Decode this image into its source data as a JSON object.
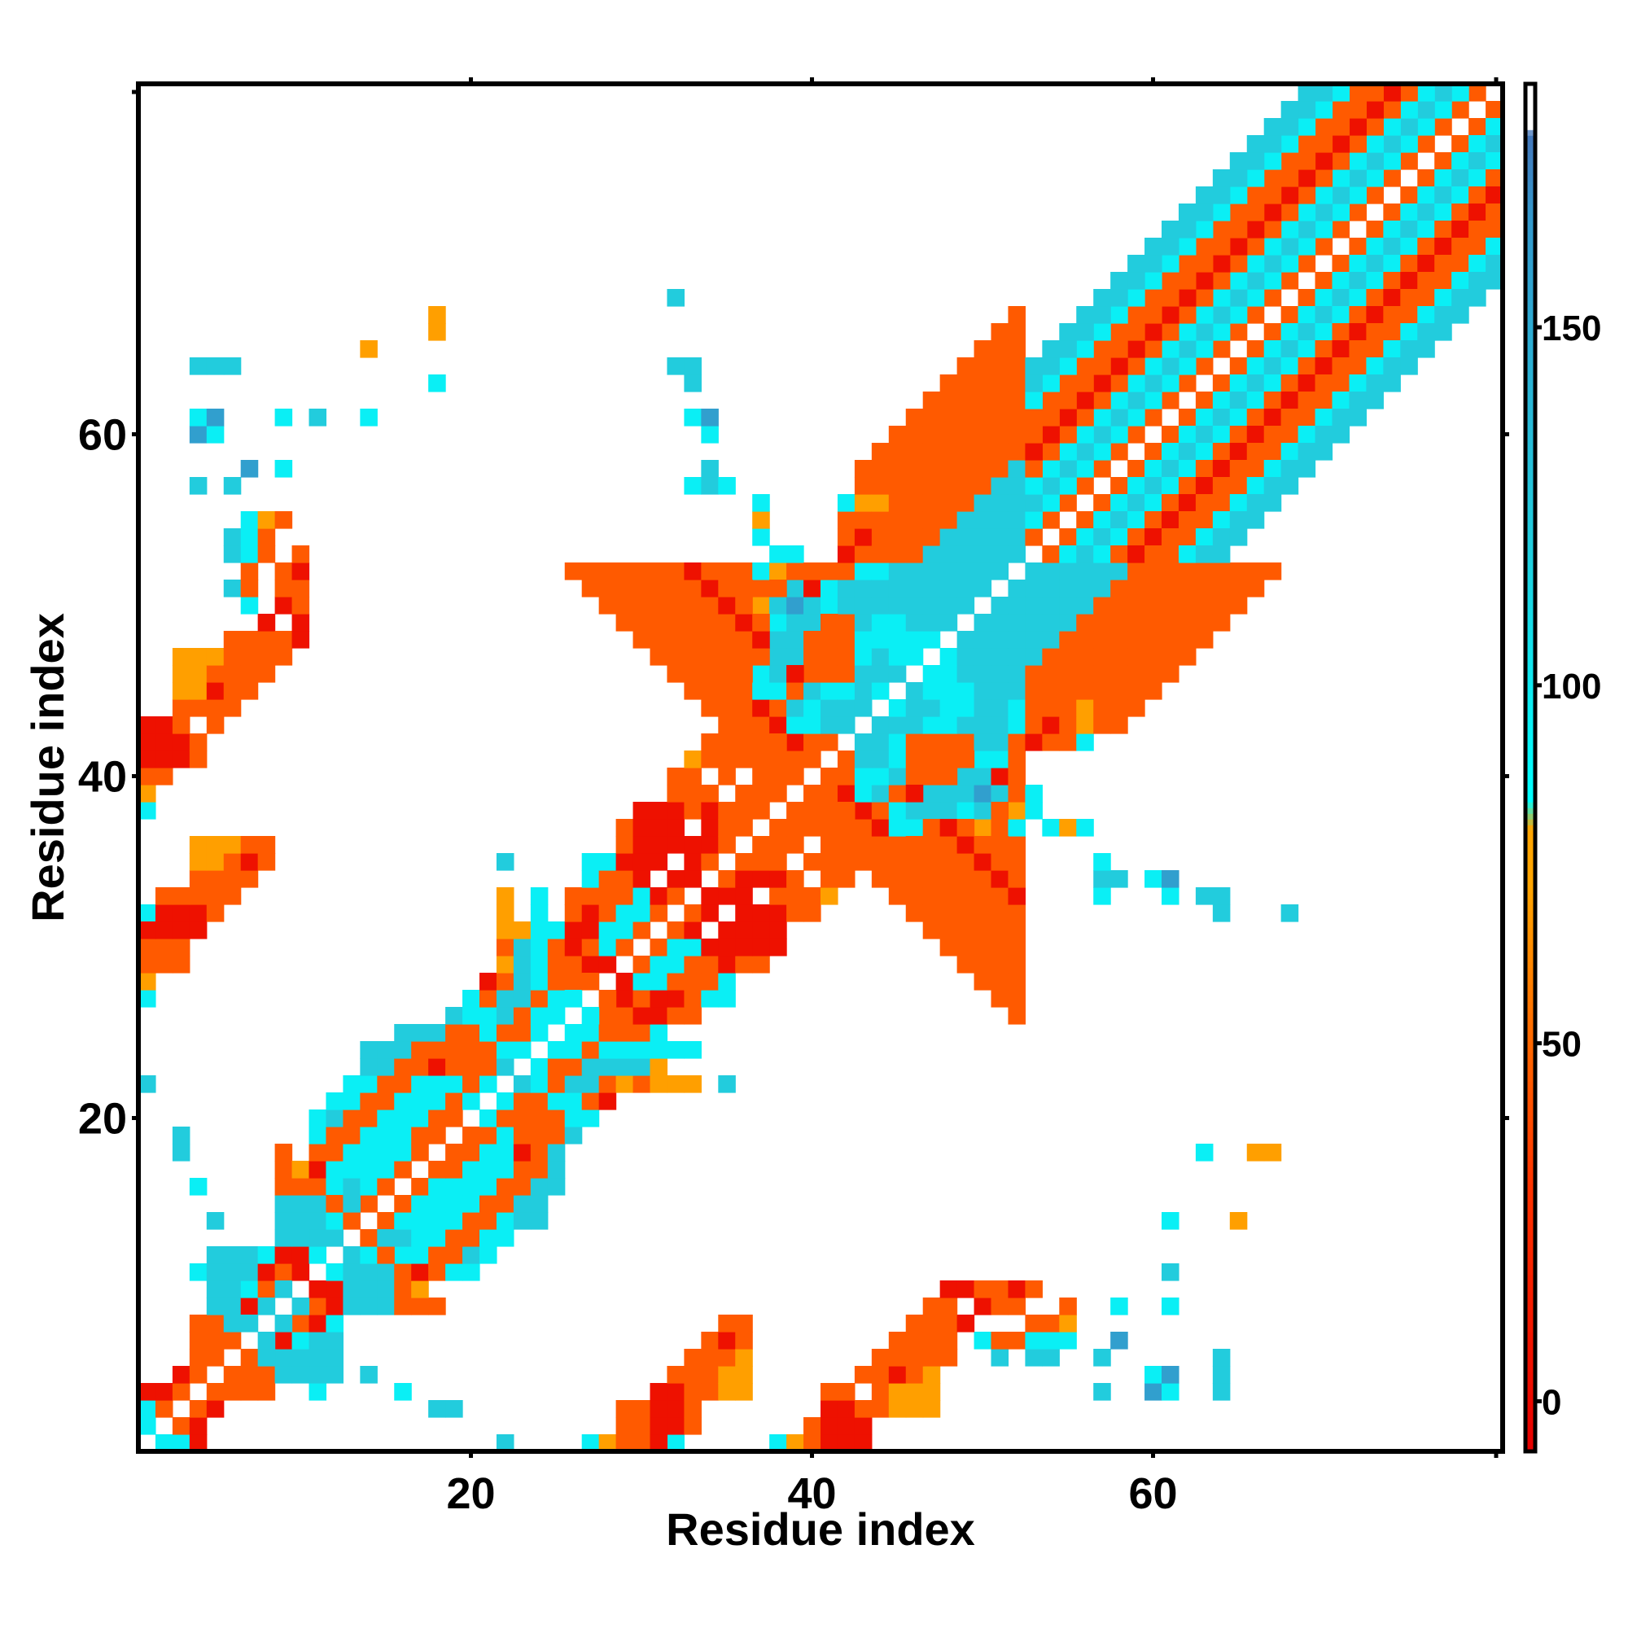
{
  "chart_data": {
    "type": "heatmap",
    "title": "",
    "xlabel": "Residue index",
    "ylabel": "Residue index",
    "xlim": [
      0.5,
      80.5
    ],
    "ylim": [
      0.5,
      80.5
    ],
    "xticks": [
      20,
      40,
      60
    ],
    "yticks": [
      20,
      40,
      60
    ],
    "grid": false,
    "colorbar": {
      "ticks": [
        0,
        50,
        100,
        150
      ],
      "range": [
        -7,
        184
      ],
      "stops": [
        {
          "v": -7,
          "color": "#e60000"
        },
        {
          "v": 30,
          "color": "#ff3300"
        },
        {
          "v": 56,
          "color": "#ff7700"
        },
        {
          "v": 72,
          "color": "#ffa500"
        },
        {
          "v": 80,
          "color": "#ffa500"
        },
        {
          "v": 84,
          "color": "#00ffff"
        },
        {
          "v": 120,
          "color": "#22ccdd"
        },
        {
          "v": 165,
          "color": "#3399cc"
        },
        {
          "v": 177,
          "color": "#4477bb"
        },
        {
          "v": 178,
          "color": "#ffffff"
        },
        {
          "v": 184,
          "color": "#ffffff"
        }
      ]
    },
    "value_by_letter": {
      "R": 5,
      "o": 45,
      "O": 70,
      "c": 95,
      "C": 120,
      "B": 160
    },
    "cells": [
      "3,1,c",
      "4,1,R",
      "32,1,c",
      "38,1,c",
      "39,1,O",
      "40,1,o",
      "41,1,R",
      "42,1,R",
      "43,1,R",
      "1,2,c",
      "3,2,o",
      "4,2,R",
      "40,2,o",
      "41,2,R",
      "42,2,R",
      "43,2,R",
      "1,3,R",
      "2,3,o",
      "4,3,o",
      "5,3,R",
      "19,3,C",
      "41,3,R",
      "42,3,R",
      "43,3,o",
      "44,3,o",
      "45,3,O",
      "46,3,O",
      "47,3,O",
      "2,4,R",
      "3,4,o",
      "5,4,o",
      "6,4,o",
      "7,4,o",
      "8,4,o",
      "11,4,c",
      "16,4,c",
      "41,4,o",
      "42,4,o",
      "44,4,o",
      "45,4,O",
      "46,4,O",
      "47,4,O",
      "57,4,C",
      "60,4,B",
      "61,4,c",
      "64,4,C",
      "3,5,R",
      "4,5,o",
      "5,5,o",
      "6,5,o",
      "7,5,o",
      "8,5,o",
      "9,5,C",
      "10,5,C",
      "11,5,C",
      "12,5,C",
      "43,5,o",
      "44,5,o",
      "45,5,R",
      "46,5,o",
      "47,5,O",
      "60,5,c",
      "61,5,B",
      "64,5,C",
      "4,6,o",
      "5,6,o",
      "7,6,o",
      "9,6,C",
      "10,6,C",
      "11,6,C",
      "12,6,C",
      "44,6,o",
      "45,6,o",
      "46,6,o",
      "47,6,o",
      "48,6,o",
      "51,6,C",
      "53,6,C",
      "54,6,C",
      "57,6,C",
      "64,6,C",
      "5,7,R",
      "6,7,o",
      "7,7,O",
      "9,7,R",
      "10,7,c",
      "11,7,C",
      "12,7,C",
      "45,7,o",
      "46,7,o",
      "47,7,o",
      "48,7,o",
      "50,7,c",
      "51,7,o",
      "52,7,o",
      "53,7,c",
      "54,7,c",
      "55,7,c",
      "58,7,B",
      "6,8,C",
      "7,8,C",
      "8,8,o",
      "10,8,o",
      "11,8,R",
      "12,8,c",
      "46,8,o",
      "47,8,o",
      "48,8,o",
      "49,8,R",
      "53,8,o",
      "54,8,o",
      "55,8,O",
      "6,9,C",
      "7,9,C",
      "8,9,C",
      "9,9,O",
      "11,9,o",
      "12,9,R",
      "14,9,C",
      "15,9,C",
      "16,9,o",
      "17,9,o",
      "18,9,o",
      "47,9,o",
      "48,9,o",
      "50,9,R",
      "51,9,o",
      "52,9,o",
      "55,9,o",
      "58,9,c",
      "61,9,c",
      "7,10,C",
      "8,10,C",
      "9,10,C",
      "10,10,C",
      "12,10,R",
      "14,10,C",
      "15,10,C",
      "16,10,o",
      "17,10,O",
      "48,10,R",
      "49,10,R",
      "50,10,o",
      "51,10,o",
      "52,10,R",
      "53,10,o",
      "10,11,R",
      "11,11,o",
      "12,11,c",
      "13,11,C",
      "14,11,C",
      "15,11,C",
      "16,11,o",
      "17,11,R",
      "18,11,o",
      "19,11,c",
      "20,11,c",
      "61,11,C",
      "9,12,o",
      "10,12,o",
      "11,12,C",
      "12,12,C",
      "13,12,C",
      "14,12,c",
      "16,12,c",
      "17,12,c",
      "18,12,o",
      "19,12,o",
      "20,12,C",
      "21,12,c",
      "9,13,C",
      "10,13,C",
      "11,13,C",
      "12,13,C",
      "13,13,c",
      "14,13,o",
      "16,13,C",
      "17,13,c",
      "18,13,c",
      "19,13,o",
      "20,13,o",
      "21,13,c",
      "22,13,c",
      "5,14,C",
      "11,14,R",
      "12,14,o",
      "13,14,C",
      "14,14,C",
      "15,14,o",
      "16,14,c",
      "17,14,c",
      "18,14,c",
      "19,14,c",
      "20,14,o",
      "21,14,o",
      "22,14,c",
      "23,14,C",
      "24,14,C",
      "61,14,c",
      "65,14,O",
      "11,15,R",
      "12,15,o",
      "13,15,C",
      "14,15,C",
      "15,15,C",
      "16,15,o",
      "17,15,c",
      "18,15,c",
      "19,15,c",
      "20,15,c",
      "21,15,o",
      "22,15,o",
      "23,15,C",
      "24,15,C",
      "12,16,R",
      "13,16,o",
      "14,16,C",
      "15,16,C",
      "16,16,C",
      "17,16,o",
      "18,16,c",
      "19,16,c",
      "20,16,c",
      "21,16,c",
      "22,16,o",
      "23,16,o",
      "24,16,C",
      "25,16,C",
      "13,17,C",
      "14,17,o",
      "15,17,o",
      "16,17,C",
      "17,17,c",
      "18,17,o",
      "19,17,o",
      "20,17,c",
      "21,17,c",
      "22,17,c",
      "23,17,o",
      "24,17,o",
      "25,17,C",
      "3,18,C",
      "13,18,C",
      "14,18,C",
      "15,18,o",
      "16,18,R",
      "17,18,c",
      "18,18,c",
      "19,18,o",
      "20,18,o",
      "21,18,c",
      "22,18,c",
      "23,18,R",
      "24,18,o",
      "25,18,C",
      "63,18,c",
      "66,18,O",
      "67,18,O",
      "14,19,C",
      "15,19,C",
      "16,19,o",
      "17,19,o",
      "18,19,c",
      "19,19,c",
      "20,19,o",
      "21,19,o",
      "22,19,c",
      "23,19,o",
      "24,19,o",
      "25,19,o",
      "26,19,C",
      "15,20,c",
      "16,20,C",
      "17,20,o",
      "18,20,o",
      "19,20,o",
      "20,20,C",
      "21,20,c",
      "22,20,o",
      "23,20,o",
      "24,20,o",
      "25,20,o",
      "26,20,c",
      "27,20,c",
      "16,21,C",
      "17,21,c",
      "18,21,o",
      "19,21,o",
      "20,21,o",
      "21,21,c",
      "22,21,c",
      "23,21,o",
      "24,21,o",
      "25,21,c",
      "26,21,c",
      "27,21,o",
      "28,21,R",
      "1,22,C",
      "16,22,c",
      "17,22,C",
      "18,22,C",
      "19,22,o",
      "20,22,o",
      "21,22,o",
      "22,22,c",
      "23,22,C",
      "24,22,c",
      "25,22,o",
      "26,22,C",
      "27,22,C",
      "28,22,o",
      "29,22,O",
      "30,22,o",
      "31,22,O",
      "32,22,O",
      "33,22,O",
      "35,22,C",
      "17,23,C",
      "18,23,c",
      "19,23,C",
      "20,23,o",
      "21,23,o",
      "22,23,o",
      "23,23,C",
      "24,23,c",
      "25,23,o",
      "26,23,o",
      "27,23,C",
      "28,23,C",
      "29,23,C",
      "30,23,C",
      "31,23,O",
      "18,24,c",
      "19,24,c",
      "20,24,c",
      "21,24,o",
      "22,24,o",
      "23,24,R",
      "24,24,o",
      "25,24,c",
      "26,24,c",
      "27,24,o",
      "28,24,c",
      "29,24,c",
      "30,24,c",
      "31,24,c",
      "32,24,c",
      "33,24,c",
      "19,25,C",
      "20,25,c",
      "21,25,o",
      "22,25,o",
      "23,25,o",
      "24,25,o",
      "25,25,C",
      "26,25,c",
      "27,25,c",
      "28,25,o",
      "29,25,o",
      "30,25,o",
      "31,25,c",
      "20,26,c",
      "21,26,c",
      "22,26,c",
      "23,26,o",
      "24,26,o",
      "25,26,C",
      "26,26,C",
      "28,26,o",
      "29,26,o",
      "30,26,R",
      "31,26,R",
      "32,26,o",
      "33,26,o",
      "1,27,c",
      "21,27,o",
      "22,27,o",
      "23,27,o",
      "24,27,O",
      "25,27,C",
      "26,27,c",
      "27,27,o",
      "29,27,R",
      "30,27,o",
      "31,27,R",
      "32,27,R",
      "33,27,o",
      "34,27,c",
      "35,27,c",
      "1,28,O",
      "25,28,o",
      "26,28,o",
      "27,28,o",
      "29,28,R",
      "30,28,c",
      "31,28,c",
      "32,28,o",
      "33,28,o",
      "34,28,o",
      "35,28,c",
      "1,29,o",
      "2,29,o",
      "3,29,o",
      "29,29,o",
      "30,29,o",
      "31,29,c",
      "32,29,c",
      "33,29,o",
      "34,29,o",
      "35,29,R",
      "36,29,o",
      "37,29,o",
      "1,30,o",
      "2,30,o",
      "3,30,o",
      "22,30,C",
      "30,30,o",
      "31,30,o",
      "32,30,c",
      "33,30,c",
      "34,30,R",
      "35,30,R",
      "36,30,R",
      "37,30,R",
      "38,30,R",
      "1,31,R",
      "2,31,R",
      "3,31,R",
      "4,31,R",
      "31,31,o",
      "32,31,o",
      "33,31,R",
      "35,31,R",
      "36,31,R",
      "37,31,R",
      "38,31,R",
      "1,32,R",
      "2,32,R",
      "3,32,R",
      "4,32,R",
      "5,32,o",
      "32,32,o",
      "33,32,o",
      "34,32,R",
      "36,32,R",
      "37,32,R",
      "38,32,R",
      "39,32,o",
      "40,32,o",
      "64,32,C",
      "68,32,C",
      "2,33,o",
      "3,33,o",
      "4,33,o",
      "5,33,o",
      "6,33,o",
      "33,33,o",
      "34,33,R",
      "35,33,R",
      "36,33,R",
      "38,33,o",
      "39,33,o",
      "40,33,o",
      "41,33,O",
      "57,33,c",
      "61,33,c",
      "63,33,C",
      "64,33,C",
      "4,34,o",
      "5,34,o",
      "6,34,o",
      "7,34,o",
      "34,34,o",
      "35,34,o",
      "36,34,R",
      "37,34,R",
      "38,34,R",
      "39,34,o",
      "41,34,o",
      "42,34,o",
      "57,34,C",
      "58,34,C",
      "60,34,c",
      "61,34,B",
      "4,35,O",
      "5,35,O",
      "6,35,o",
      "7,35,R",
      "8,35,o",
      "35,35,o",
      "36,35,o",
      "37,35,o",
      "38,35,o",
      "40,35,o",
      "41,35,o",
      "42,35,o",
      "43,35,o",
      "57,35,c",
      "4,36,O",
      "5,36,O",
      "6,36,O",
      "7,36,o",
      "8,36,o",
      "36,36,o",
      "37,36,o",
      "38,36,o",
      "39,36,o",
      "41,36,o",
      "42,36,o",
      "43,36,o",
      "44,36,o",
      "45,36,o",
      "52,36,o",
      "37,37,o",
      "38,37,o",
      "39,37,o",
      "40,37,o",
      "42,37,o",
      "43,37,o",
      "44,37,R",
      "45,37,c",
      "46,37,c",
      "50,37,O",
      "51,37,o",
      "52,37,c",
      "54,37,c",
      "55,37,O",
      "56,37,c",
      "38,38,o",
      "39,38,o",
      "40,38,o",
      "41,38,o",
      "43,38,R",
      "44,38,o",
      "45,38,c",
      "46,38,C",
      "47,38,C",
      "48,38,C",
      "49,38,c",
      "50,38,C",
      "52,38,O",
      "53,38,c",
      "38,39,o",
      "39,39,o",
      "40,39,o",
      "41,39,o",
      "42,39,R",
      "43,39,c",
      "44,39,C",
      "45,39,o",
      "47,39,C",
      "48,39,C",
      "49,39,C",
      "50,39,B",
      "51,39,C",
      "52,39,o",
      "53,39,c",
      "37,40,o",
      "38,40,o",
      "39,40,o",
      "40,40,o",
      "41,40,o",
      "42,40,o",
      "43,40,c",
      "44,40,c",
      "45,40,C",
      "46,40,o",
      "47,40,o",
      "49,40,C",
      "50,40,C",
      "51,40,R",
      "37,41,o",
      "38,41,o",
      "39,41,o",
      "40,41,R",
      "41,41,o",
      "42,41,o",
      "43,41,C",
      "44,41,C",
      "45,41,c",
      "46,41,o",
      "47,41,o",
      "48,41,o",
      "50,41,c",
      "51,41,c",
      "52,41,o",
      "36,42,o",
      "37,42,o",
      "38,42,o",
      "39,42,o",
      "40,42,o",
      "41,42,R",
      "42,42,o",
      "43,42,C",
      "44,42,C",
      "45,42,c",
      "46,42,o",
      "47,42,o",
      "48,42,o",
      "49,42,o",
      "50,42,C",
      "51,42,C",
      "52,42,o",
      "53,42,R",
      "54,42,o",
      "55,42,o",
      "56,42,c",
      "35,43,o",
      "36,43,o",
      "37,43,o",
      "38,43,o",
      "39,43,o",
      "40,43,o",
      "41,43,R",
      "42,43,o",
      "43,43,C",
      "44,43,C",
      "45,43,C",
      "46,43,C",
      "47,43,c",
      "48,43,c",
      "49,43,C",
      "50,43,C",
      "51,43,C",
      "52,43,c",
      "53,43,o",
      "54,43,R",
      "55,43,o",
      "56,43,O",
      "57,43,o",
      "58,43,o",
      "34,44,o",
      "35,44,o",
      "36,44,o",
      "37,44,o",
      "38,44,o",
      "39,44,o",
      "40,44,o",
      "41,44,R",
      "42,44,o",
      "43,44,o",
      "44,44,c",
      "45,44,c",
      "46,44,C",
      "47,44,C",
      "48,44,c",
      "49,44,c",
      "50,44,C",
      "51,44,C",
      "52,44,c",
      "53,44,o",
      "54,44,o",
      "55,44,o",
      "56,44,O",
      "57,44,o",
      "58,44,o",
      "59,44,o",
      "33,45,o",
      "34,45,o",
      "35,45,o",
      "36,45,o",
      "37,45,o",
      "38,45,o",
      "39,45,o",
      "40,45,R",
      "41,45,R",
      "42,45,o",
      "43,45,o",
      "44,45,o",
      "45,45,c",
      "46,45,C",
      "47,45,c",
      "48,45,c",
      "49,45,c",
      "50,45,C",
      "51,45,C",
      "52,45,C",
      "53,45,o",
      "54,45,o",
      "55,45,o",
      "56,45,o",
      "57,45,o",
      "58,45,o",
      "59,45,o",
      "60,45,o",
      "32,46,o",
      "33,46,o",
      "34,46,o",
      "35,46,o",
      "36,46,o",
      "37,46,o",
      "38,46,R",
      "39,46,R",
      "40,46,o",
      "41,46,o",
      "42,46,o",
      "43,46,o",
      "44,46,c",
      "45,46,C",
      "46,46,c",
      "47,46,c",
      "48,46,c",
      "49,46,C",
      "50,46,C",
      "51,46,C",
      "52,46,C",
      "53,46,o",
      "54,46,o",
      "55,46,o",
      "56,46,o",
      "57,46,o",
      "58,46,o",
      "59,46,o",
      "60,46,o",
      "61,46,o",
      "31,47,o",
      "32,47,o",
      "33,47,o",
      "34,47,o",
      "35,47,o",
      "36,47,o",
      "37,47,o",
      "38,47,R",
      "39,47,o",
      "40,47,o",
      "41,47,o",
      "42,47,o",
      "43,47,o",
      "44,47,C",
      "45,47,C",
      "46,47,C",
      "47,47,c",
      "48,47,c",
      "49,47,C",
      "50,47,C",
      "51,47,C",
      "52,47,C",
      "53,47,C",
      "54,47,o",
      "55,47,o",
      "56,47,o",
      "57,47,o",
      "58,47,o",
      "59,47,o",
      "60,47,o",
      "61,47,o",
      "62,47,o",
      "30,48,o",
      "31,48,o",
      "32,48,o",
      "33,48,o",
      "34,48,o",
      "35,48,o",
      "36,48,o",
      "37,48,R",
      "38,48,o",
      "39,48,o",
      "40,48,o",
      "41,48,o",
      "42,48,o",
      "43,48,o",
      "44,48,c",
      "45,48,C",
      "46,48,C",
      "47,48,c",
      "48,48,c",
      "49,48,C",
      "50,48,C",
      "51,48,C",
      "52,48,C",
      "53,48,C",
      "54,48,C",
      "55,48,o",
      "56,48,o",
      "57,48,o",
      "58,48,o",
      "59,48,o",
      "60,48,o",
      "61,48,o",
      "62,48,o",
      "63,48,o",
      "29,49,o",
      "30,49,o",
      "31,49,o",
      "32,49,o",
      "33,49,o",
      "34,49,o",
      "35,49,o",
      "36,49,R",
      "37,49,o",
      "38,49,o",
      "39,49,o",
      "40,49,o",
      "41,49,o",
      "42,49,o",
      "43,49,o",
      "44,49,o",
      "45,49,c",
      "46,49,C",
      "47,49,C",
      "48,49,c",
      "49,49,c",
      "50,49,C",
      "51,49,C",
      "52,49,C",
      "53,49,C",
      "54,49,C",
      "55,49,C",
      "56,49,o",
      "57,49,o",
      "58,49,o",
      "59,49,o",
      "60,49,o",
      "61,49,o",
      "62,49,o",
      "63,49,o",
      "64,49,o",
      "28,50,o",
      "29,50,o",
      "30,50,o",
      "31,50,o",
      "32,50,o",
      "33,50,o",
      "34,50,o",
      "35,50,R",
      "36,50,o",
      "37,50,o",
      "38,50,o",
      "39,50,o",
      "40,50,o",
      "41,50,o",
      "42,50,o",
      "43,50,o",
      "44,50,o",
      "45,50,o",
      "46,50,c",
      "47,50,C",
      "48,50,C",
      "49,50,c",
      "50,50,c",
      "51,50,C",
      "52,50,C",
      "53,50,C",
      "54,50,C",
      "55,50,C",
      "56,50,C",
      "57,50,o",
      "58,50,o",
      "59,50,o",
      "60,50,o",
      "61,50,o",
      "62,50,o",
      "63,50,o",
      "64,50,o",
      "65,50,o",
      "27,51,o",
      "28,51,o",
      "29,51,o",
      "30,51,o",
      "31,51,o",
      "32,51,o",
      "33,51,o",
      "34,51,R",
      "35,51,o",
      "36,51,o",
      "37,51,o",
      "38,51,o",
      "39,51,o",
      "40,51,o",
      "41,51,o",
      "42,51,o",
      "43,51,o",
      "44,51,o",
      "45,51,o",
      "46,51,o",
      "47,51,c",
      "48,51,C",
      "49,51,C",
      "50,51,c",
      "51,51,c",
      "52,51,C",
      "53,51,C",
      "54,51,C",
      "55,51,C",
      "56,51,C",
      "57,51,C",
      "58,51,o",
      "59,51,o",
      "60,51,o",
      "61,51,o",
      "62,51,o",
      "63,51,o",
      "64,51,o",
      "65,51,o",
      "66,51,o"
    ],
    "diagonal_cells": [
      "26,52,o",
      "27,52,o",
      "28,52,o",
      "29,52,o",
      "30,52,o",
      "31,52,o",
      "32,52,o",
      "33,52,R",
      "34,52,o",
      "35,52,o",
      "36,52,o",
      "37,52,o",
      "38,52,o",
      "39,52,o",
      "40,52,o",
      "41,52,o",
      "42,52,o",
      "43,52,o",
      "44,52,o",
      "45,52,o",
      "46,52,o",
      "47,52,o",
      "48,52,c",
      "49,52,C",
      "50,52,C",
      "51,52,c",
      "52,52,c",
      "53,52,C",
      "54,52,C",
      "55,52,C",
      "56,52,C",
      "57,52,C",
      "58,52,C",
      "59,52,o",
      "60,52,o",
      "61,52,o",
      "62,52,o",
      "63,52,o",
      "64,52,o",
      "65,52,o",
      "66,52,o",
      "67,52,o"
    ]
  }
}
